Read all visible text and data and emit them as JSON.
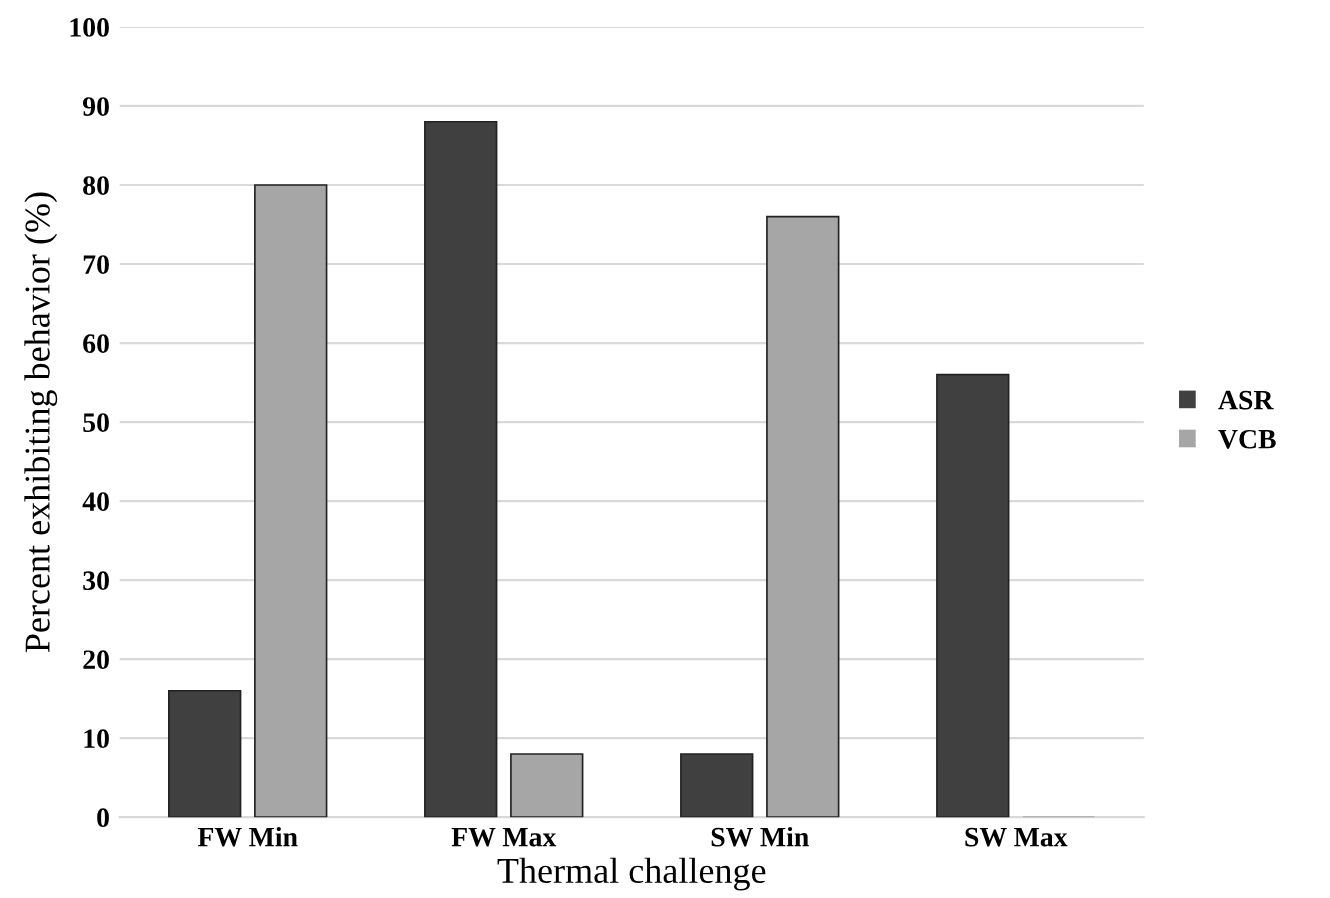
{
  "chart_data": {
    "type": "bar",
    "xlabel": "Thermal challenge",
    "ylabel": "Percent exhibiting behavior (%)",
    "categories": [
      "FW Min",
      "FW Max",
      "SW Min",
      "SW Max"
    ],
    "series": [
      {
        "name": "ASR",
        "color": "#404040",
        "values": [
          16,
          88,
          8,
          56
        ]
      },
      {
        "name": "VCB",
        "color": "#a6a6a6",
        "values": [
          80,
          8,
          76,
          0
        ]
      }
    ],
    "ylim": [
      0,
      100
    ],
    "yticks": [
      0,
      10,
      20,
      30,
      40,
      50,
      60,
      70,
      80,
      90,
      100
    ],
    "grid": "y",
    "legend": "right"
  }
}
